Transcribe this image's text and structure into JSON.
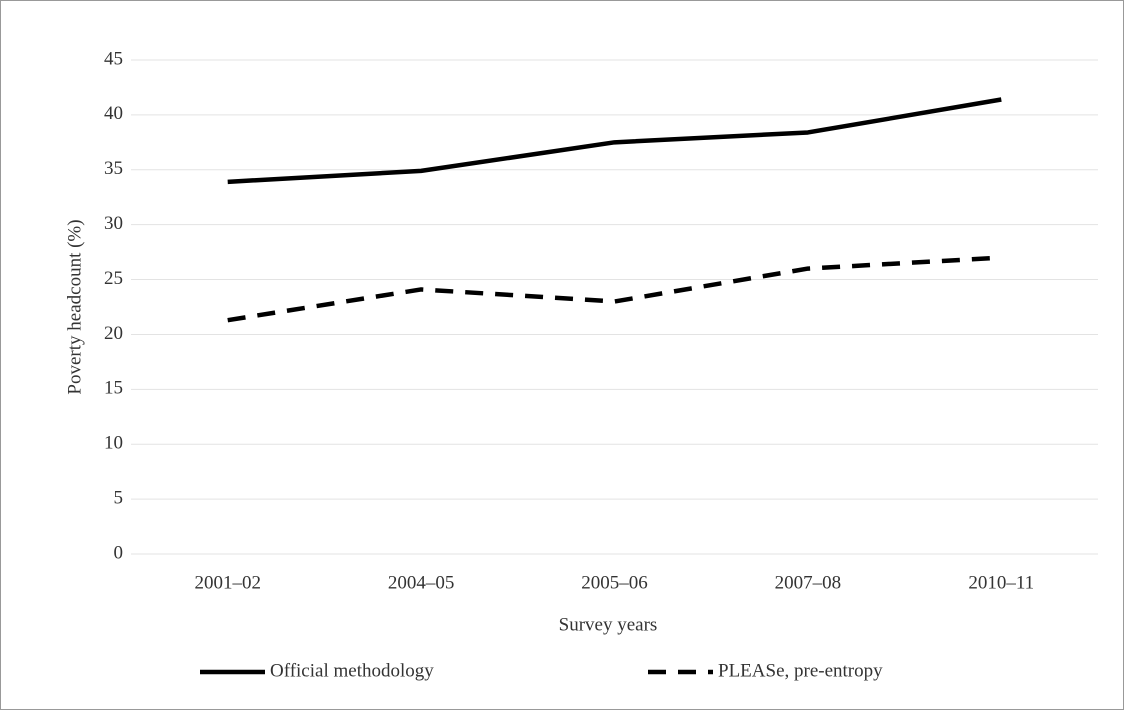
{
  "chart_data": {
    "type": "line",
    "x_label": "Survey years",
    "y_label": "Poverty headcount (%)",
    "categories": [
      "2001–02",
      "2004–05",
      "2005–06",
      "2007–08",
      "2010–11"
    ],
    "series": [
      {
        "name": "Official methodology",
        "color": "#000000",
        "line_style": "solid",
        "values": [
          33.9,
          34.9,
          37.5,
          38.4,
          41.4
        ]
      },
      {
        "name": "PLEASe, pre-entropy",
        "color": "#000000",
        "line_style": "dashed",
        "values": [
          21.3,
          24.1,
          23.0,
          26.0,
          27.0
        ]
      }
    ],
    "ylim": [
      0,
      45
    ],
    "yticks": [
      0,
      5,
      10,
      15,
      20,
      25,
      30,
      35,
      40,
      45
    ],
    "grid": true,
    "legend": "bottom"
  }
}
